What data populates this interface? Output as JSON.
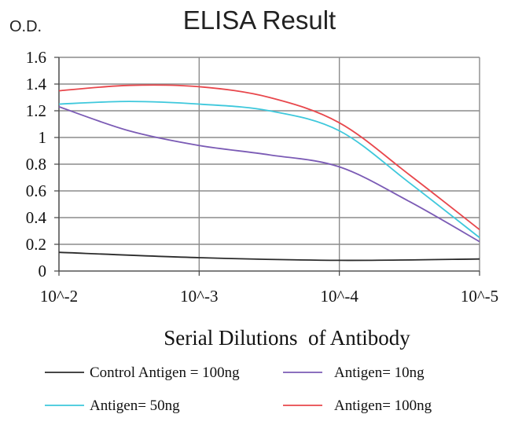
{
  "chart_data": {
    "type": "line",
    "title": "ELISA Result",
    "ylabel": "O.D.",
    "xlabel": "Serial Dilutions  of Antibody",
    "x_scale": "log",
    "x": [
      0.01,
      0.001,
      0.0001,
      1e-05
    ],
    "x_tick_labels": [
      "10^-2",
      "10^-3",
      "10^-4",
      "10^-5"
    ],
    "ylim": [
      0,
      1.6
    ],
    "y_ticks": [
      0,
      0.2,
      0.4,
      0.6,
      0.8,
      1,
      1.2,
      1.4,
      1.6
    ],
    "y_tick_labels": [
      "0",
      "0.2",
      "0.4",
      "0.6",
      "0.8",
      "1",
      "1.2",
      "1.4",
      "1.6"
    ],
    "grid": true,
    "legend_position": "bottom",
    "series": [
      {
        "name": "Control Antigen = 100ng",
        "color": "#2b2b2b",
        "points": [
          [
            0.01,
            0.14
          ],
          [
            0.001,
            0.1
          ],
          [
            0.0001,
            0.08
          ],
          [
            1e-05,
            0.09
          ]
        ]
      },
      {
        "name": "Antigen= 10ng",
        "color": "#7b5bb5",
        "points": [
          [
            0.01,
            1.23
          ],
          [
            0.00316,
            1.05
          ],
          [
            0.001,
            0.94
          ],
          [
            0.000316,
            0.87
          ],
          [
            0.0001,
            0.78
          ],
          [
            3.16e-05,
            0.52
          ],
          [
            1e-05,
            0.22
          ]
        ]
      },
      {
        "name": "Antigen= 50ng",
        "color": "#3ec8dc",
        "points": [
          [
            0.01,
            1.25
          ],
          [
            0.00316,
            1.27
          ],
          [
            0.001,
            1.25
          ],
          [
            0.000316,
            1.2
          ],
          [
            0.0001,
            1.05
          ],
          [
            3.16e-05,
            0.66
          ],
          [
            1e-05,
            0.25
          ]
        ]
      },
      {
        "name": "Antigen= 100ng",
        "color": "#e8474c",
        "points": [
          [
            0.01,
            1.35
          ],
          [
            0.00316,
            1.39
          ],
          [
            0.001,
            1.38
          ],
          [
            0.000316,
            1.3
          ],
          [
            0.0001,
            1.11
          ],
          [
            3.16e-05,
            0.72
          ],
          [
            1e-05,
            0.31
          ]
        ]
      }
    ]
  }
}
